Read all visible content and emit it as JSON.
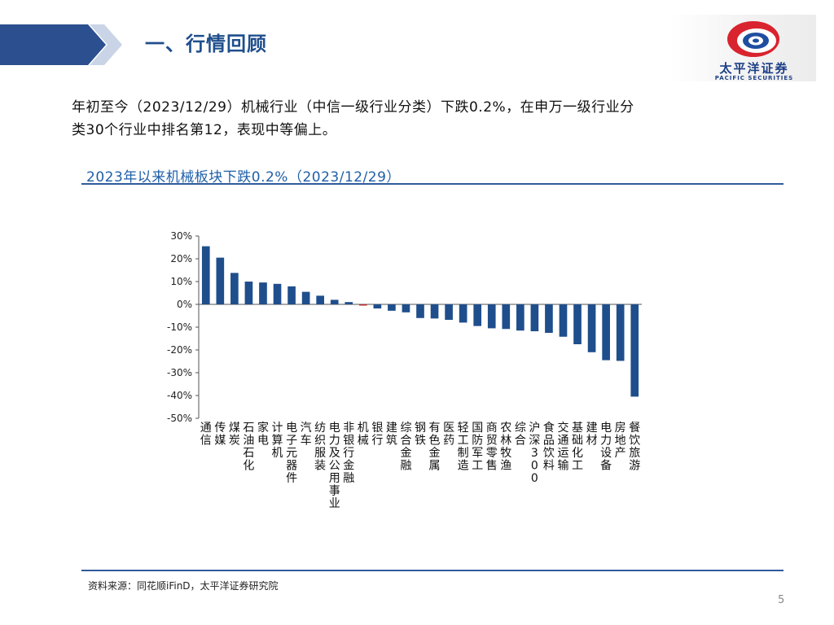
{
  "header": {
    "section_title": "一、行情回顾",
    "logo_cn": "太平洋证券",
    "logo_en": "PACIFIC SECURITIES"
  },
  "summary": {
    "line1": "年初至今（2023/12/29）机械行业（中信一级行业分类）下跌0.2%，在申万一级行业分",
    "line2": "类30个行业中排名第12，表现中等偏上。"
  },
  "chart_title": "2023年以来机械板块下跌0.2%（2023/12/29）",
  "chart_data": {
    "type": "bar",
    "title": "2023年以来机械板块下跌0.2%（2023/12/29）",
    "xlabel": "",
    "ylabel": "",
    "ylim": [
      -50,
      30
    ],
    "yticks": [
      30,
      20,
      10,
      0,
      -10,
      -20,
      -30,
      -40,
      -50
    ],
    "ytick_labels": [
      "30%",
      "20%",
      "10%",
      "0%",
      "-10%",
      "-20%",
      "-30%",
      "-40%",
      "-50%"
    ],
    "categories": [
      "通信",
      "传媒",
      "煤炭",
      "石油石化",
      "家电",
      "计算机",
      "电子元器件",
      "汽车",
      "纺织服装",
      "电力及公用事业",
      "非银行金融",
      "机械",
      "银行",
      "建筑",
      "综合金融",
      "钢铁",
      "有色金属",
      "医药",
      "轻工制造",
      "国防军工",
      "商贸零售",
      "农林牧渔",
      "综合",
      "沪深300",
      "食品饮料",
      "交通运输",
      "基础化工",
      "建材",
      "电力设备",
      "房地产",
      "餐饮旅游"
    ],
    "values": [
      25.5,
      20.5,
      13.8,
      10.0,
      9.6,
      9.0,
      7.9,
      5.5,
      3.8,
      2.0,
      1.0,
      -0.2,
      -1.8,
      -2.8,
      -3.5,
      -6.0,
      -6.2,
      -6.8,
      -8.0,
      -9.5,
      -10.5,
      -10.8,
      -11.5,
      -11.8,
      -12.5,
      -14.2,
      -17.5,
      -21.0,
      -24.5,
      -24.8,
      -40.5
    ],
    "bar_color": "#1f4e8c",
    "highlight_category": "机械",
    "highlight_color": "#c0292b",
    "grid": false,
    "legend": "none"
  },
  "source": "资料来源：同花顺iFinD，太平洋证券研究院",
  "page_number": "5"
}
